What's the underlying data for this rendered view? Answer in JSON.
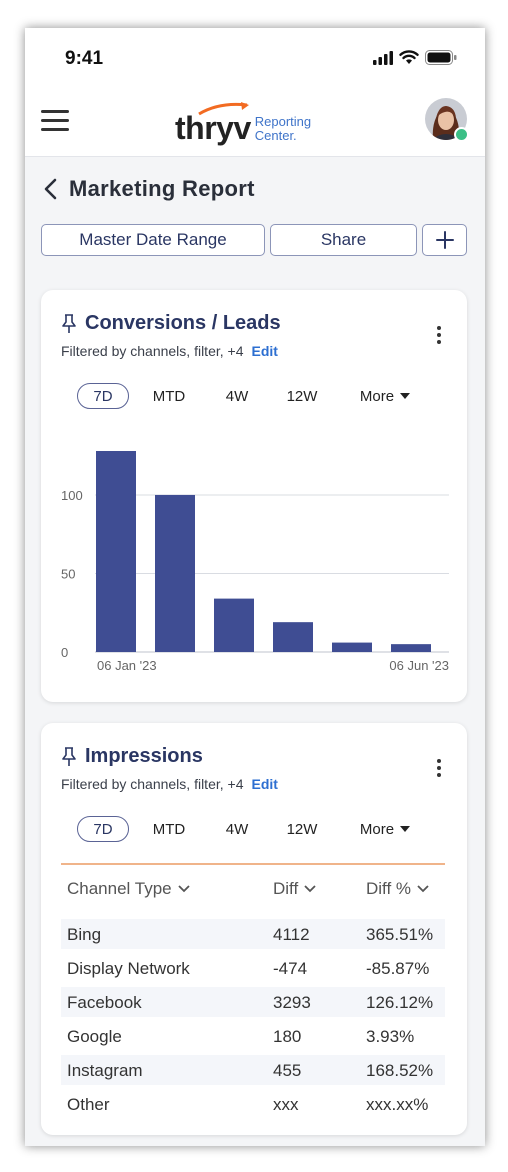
{
  "status_bar": {
    "time": "9:41"
  },
  "app_bar": {
    "logo_word": "thryv",
    "logo_sub_line1": "Reporting",
    "logo_sub_line2": "Center."
  },
  "page": {
    "title": "Marketing Report"
  },
  "toolbar": {
    "date_range_label": "Master Date Range",
    "share_label": "Share",
    "add_label": "+"
  },
  "conversions_card": {
    "title": "Conversions / Leads",
    "filter_text": "Filtered by channels, filter, +4",
    "edit_label": "Edit",
    "ranges": [
      "7D",
      "MTD",
      "4W",
      "12W",
      "More"
    ],
    "active_range": "7D"
  },
  "chart_data": {
    "type": "bar",
    "categories": [
      "06 Jan '23",
      "",
      "",
      "",
      "",
      "06 Jun '23"
    ],
    "values": [
      128,
      100,
      34,
      19,
      6,
      5
    ],
    "y_ticks": [
      "0",
      "50",
      "100"
    ],
    "x_tick_labels": [
      "06 Jan '23",
      "06 Jun '23"
    ],
    "ylim": [
      0,
      135
    ],
    "grid": true,
    "bar_color": "#3f4d93"
  },
  "impressions_card": {
    "title": "Impressions",
    "filter_text": "Filtered by channels, filter, +4",
    "edit_label": "Edit",
    "ranges": [
      "7D",
      "MTD",
      "4W",
      "12W",
      "More"
    ],
    "active_range": "7D",
    "columns": [
      "Channel Type",
      "Diff",
      "Diff %"
    ],
    "rows": [
      {
        "channel": "Bing",
        "diff": "4112",
        "diff_pct": "365.51%"
      },
      {
        "channel": "Display Network",
        "diff": "-474",
        "diff_pct": "-85.87%"
      },
      {
        "channel": "Facebook",
        "diff": "3293",
        "diff_pct": "126.12%"
      },
      {
        "channel": "Google",
        "diff": "180",
        "diff_pct": "3.93%"
      },
      {
        "channel": "Instagram",
        "diff": "455",
        "diff_pct": "168.52%"
      },
      {
        "channel": "Other",
        "diff": "xxx",
        "diff_pct": "xxx.xx%"
      }
    ]
  },
  "colors": {
    "accent": "#2a3663",
    "link": "#2d6fd1",
    "bar": "#3f4d93",
    "table_rule": "#f0b48a",
    "presence": "#3bbf86"
  }
}
